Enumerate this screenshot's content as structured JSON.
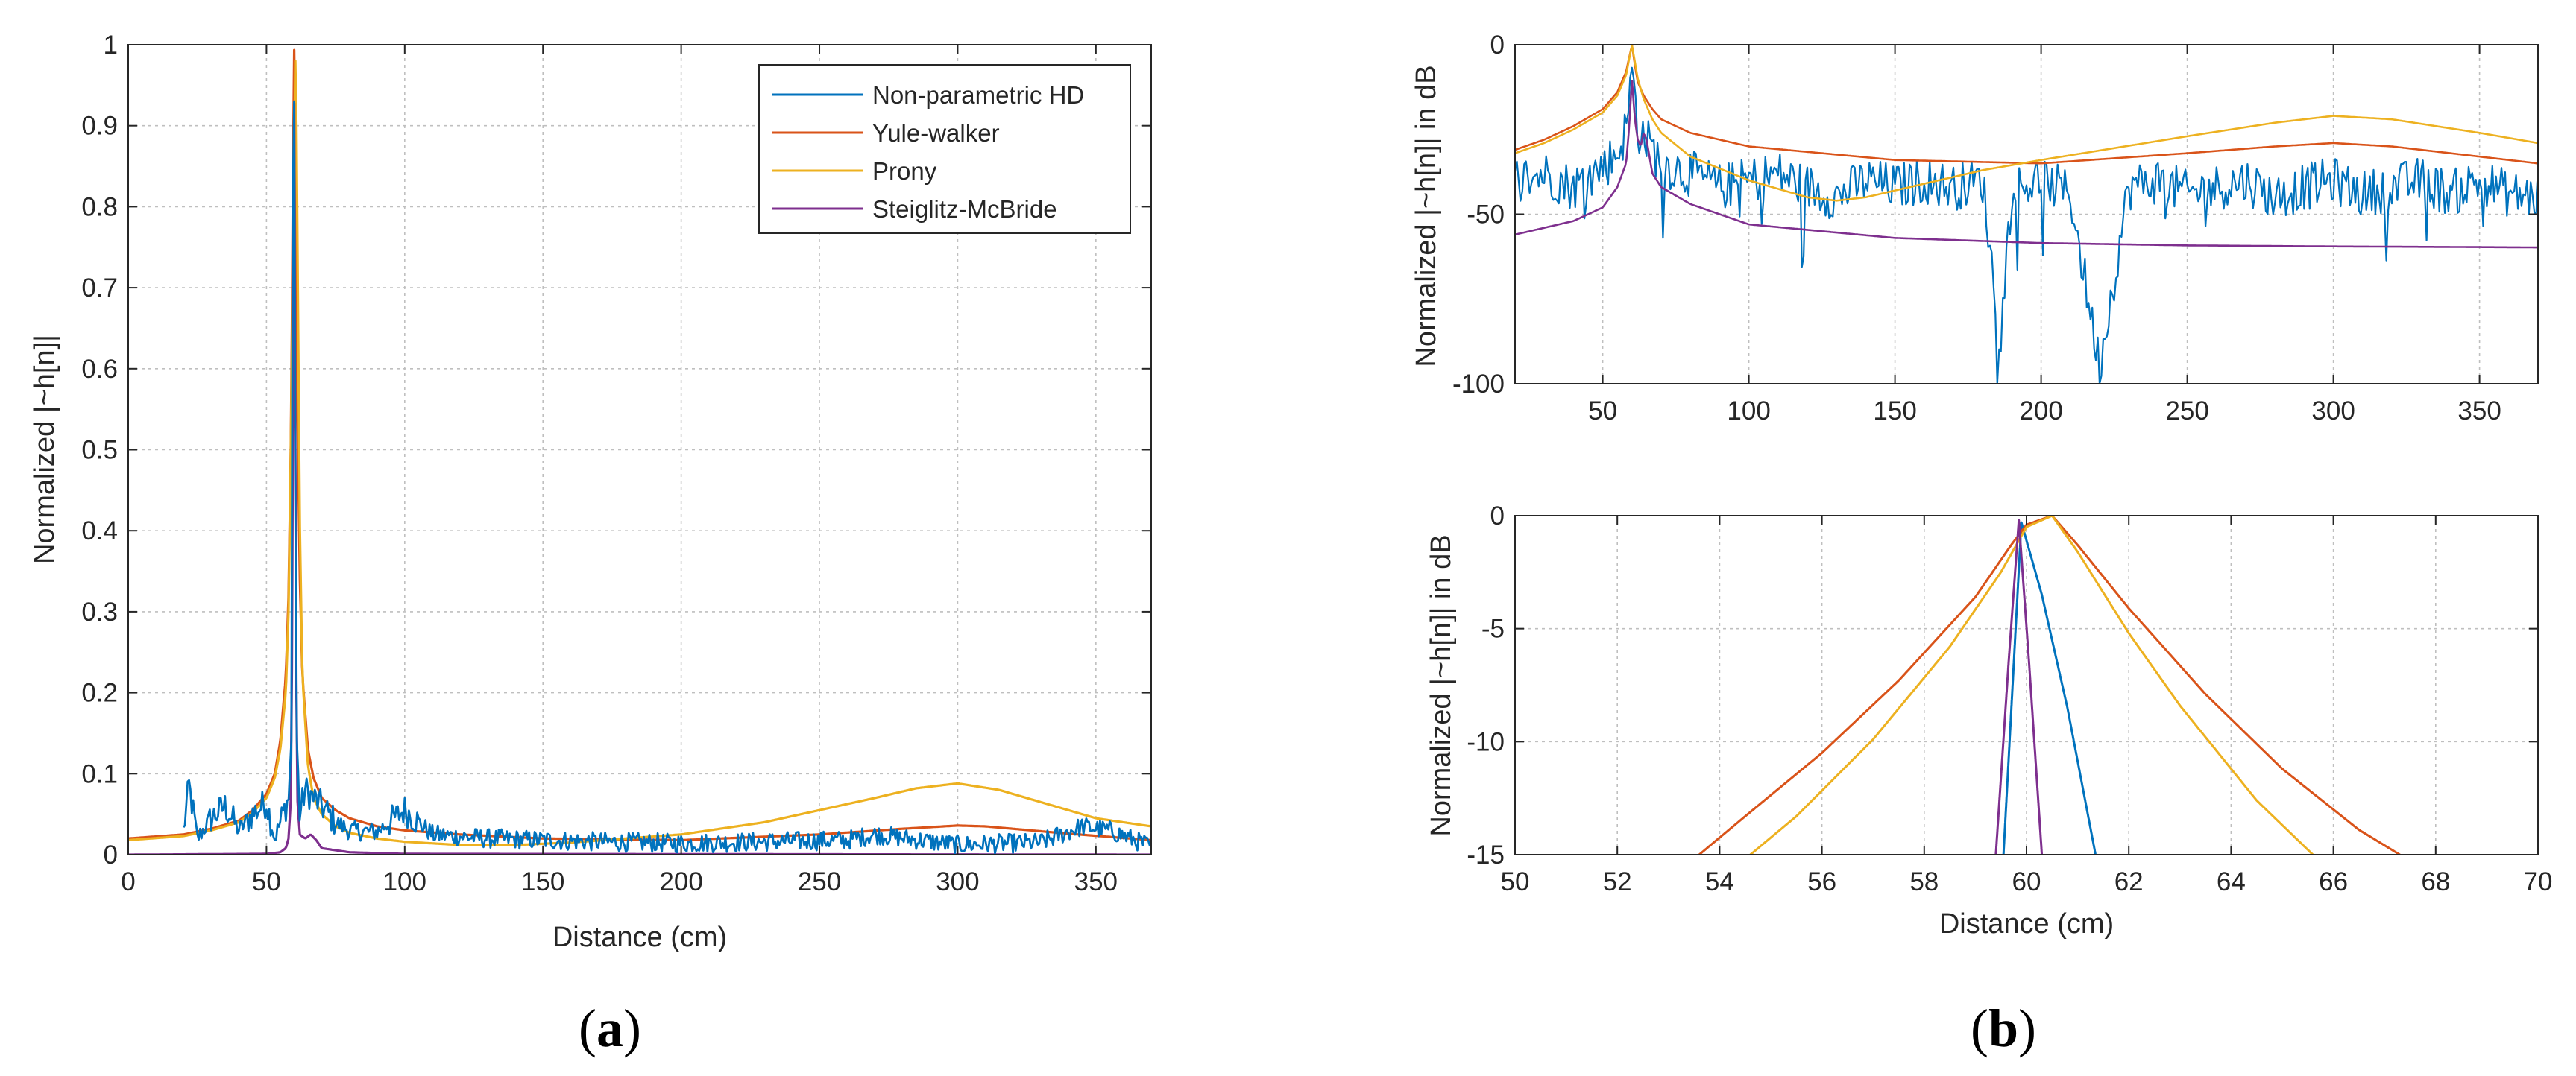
{
  "colors": {
    "non_parametric": "#0072BD",
    "yule_walker": "#D95319",
    "prony": "#EDB120",
    "steiglitz": "#7E2F8E",
    "axes": "#262626",
    "grid": "#bfbfbf"
  },
  "chart_data": [
    {
      "id": "a",
      "type": "line",
      "caption": "a",
      "title": "",
      "xlabel": "Distance (cm)",
      "ylabel": "Normalized |~h[n]|",
      "xlim": [
        0,
        370
      ],
      "ylim": [
        0,
        1
      ],
      "xticks": [
        0,
        50,
        100,
        150,
        200,
        250,
        300,
        350
      ],
      "yticks": [
        0,
        0.1,
        0.2,
        0.3,
        0.4,
        0.5,
        0.6,
        0.7,
        0.8,
        0.9,
        1
      ],
      "grid": true,
      "legend": {
        "position": "top-right",
        "entries": [
          "Non-parametric HD",
          "Yule-walker",
          "Prony",
          "Steiglitz-McBride"
        ]
      },
      "series": [
        {
          "name": "Non-parametric HD",
          "color_key": "non_parametric",
          "kind": "noisy",
          "x": [
            20,
            22,
            25,
            30,
            35,
            40,
            45,
            50,
            53,
            56,
            58,
            59,
            59.5,
            60,
            60.5,
            61,
            62,
            64,
            67,
            70,
            75,
            80,
            90,
            100,
            110,
            130,
            150,
            170,
            200,
            230,
            260,
            270,
            300,
            330,
            345,
            355,
            370
          ],
          "y": [
            0.03,
            0.085,
            0.02,
            0.045,
            0.06,
            0.03,
            0.05,
            0.065,
            0.02,
            0.05,
            0.07,
            0.14,
            0.8,
            0.93,
            0.4,
            0.14,
            0.05,
            0.08,
            0.07,
            0.06,
            0.04,
            0.03,
            0.028,
            0.055,
            0.025,
            0.02,
            0.018,
            0.016,
            0.014,
            0.016,
            0.018,
            0.025,
            0.012,
            0.015,
            0.035,
            0.03,
            0.01
          ],
          "noise": 0.012
        },
        {
          "name": "Yule-walker",
          "color_key": "yule_walker",
          "kind": "smooth",
          "x": [
            0,
            20,
            30,
            40,
            45,
            50,
            53,
            55,
            57,
            58,
            59,
            59.5,
            60,
            60.5,
            61,
            62,
            63,
            65,
            67,
            70,
            75,
            80,
            90,
            100,
            120,
            150,
            200,
            250,
            280,
            300,
            310,
            340,
            370
          ],
          "y": [
            0.02,
            0.025,
            0.032,
            0.042,
            0.055,
            0.075,
            0.1,
            0.14,
            0.22,
            0.32,
            0.55,
            0.8,
            1.0,
            0.85,
            0.6,
            0.35,
            0.22,
            0.13,
            0.095,
            0.07,
            0.055,
            0.045,
            0.035,
            0.03,
            0.025,
            0.02,
            0.018,
            0.025,
            0.032,
            0.036,
            0.035,
            0.026,
            0.018
          ]
        },
        {
          "name": "Prony",
          "color_key": "prony",
          "kind": "smooth",
          "x": [
            0,
            20,
            30,
            40,
            45,
            50,
            53,
            55,
            57,
            58,
            59,
            60,
            60.5,
            61,
            62,
            63,
            65,
            67,
            70,
            75,
            80,
            90,
            100,
            120,
            140,
            160,
            200,
            230,
            250,
            270,
            285,
            300,
            315,
            330,
            350,
            370
          ],
          "y": [
            0.018,
            0.023,
            0.03,
            0.04,
            0.052,
            0.07,
            0.095,
            0.13,
            0.2,
            0.3,
            0.55,
            0.85,
            1.0,
            0.85,
            0.42,
            0.22,
            0.11,
            0.07,
            0.05,
            0.035,
            0.027,
            0.02,
            0.016,
            0.012,
            0.012,
            0.015,
            0.025,
            0.04,
            0.055,
            0.07,
            0.082,
            0.088,
            0.08,
            0.065,
            0.045,
            0.035
          ]
        },
        {
          "name": "Steiglitz-McBride",
          "color_key": "steiglitz",
          "kind": "smooth",
          "x": [
            0,
            50,
            55,
            57,
            58,
            59,
            59.5,
            60,
            60.5,
            61,
            62,
            64,
            66,
            68,
            70,
            80,
            100,
            370
          ],
          "y": [
            0,
            0.001,
            0.003,
            0.008,
            0.02,
            0.08,
            0.45,
            0.95,
            0.45,
            0.08,
            0.025,
            0.02,
            0.025,
            0.018,
            0.008,
            0.003,
            0.001,
            0
          ]
        }
      ]
    },
    {
      "id": "b_top",
      "type": "line",
      "title": "",
      "xlabel": "",
      "ylabel": "Normalized |~h[n]| in dB",
      "xlim": [
        20,
        370
      ],
      "ylim": [
        -100,
        0
      ],
      "xticks": [
        50,
        100,
        150,
        200,
        250,
        300,
        350
      ],
      "yticks": [
        -100,
        -50,
        0
      ],
      "grid": true,
      "series": [
        {
          "name": "Non-parametric HD",
          "color_key": "non_parametric",
          "kind": "noisy",
          "x": [
            20,
            30,
            40,
            50,
            55,
            58,
            60,
            61,
            62,
            65,
            70,
            80,
            90,
            100,
            110,
            120,
            130,
            140,
            150,
            160,
            170,
            180,
            186,
            190,
            200,
            210,
            220,
            230,
            240,
            250,
            260,
            270,
            280,
            290,
            300,
            310,
            320,
            330,
            340,
            350,
            360,
            370
          ],
          "y": [
            -40,
            -38,
            -42,
            -36,
            -32,
            -25,
            -8,
            -15,
            -25,
            -28,
            -35,
            -38,
            -42,
            -40,
            -38,
            -42,
            -45,
            -40,
            -42,
            -40,
            -42,
            -40,
            -88,
            -42,
            -40,
            -44,
            -95,
            -42,
            -40,
            -44,
            -42,
            -40,
            -45,
            -42,
            -40,
            -44,
            -42,
            -40,
            -44,
            -40,
            -44,
            -45
          ],
          "noise": 7
        },
        {
          "name": "Yule-walker",
          "color_key": "yule_walker",
          "kind": "smooth",
          "x": [
            20,
            30,
            40,
            50,
            55,
            58,
            60,
            61,
            62,
            64,
            67,
            70,
            80,
            100,
            150,
            200,
            250,
            280,
            300,
            320,
            350,
            370
          ],
          "y": [
            -31,
            -28,
            -24,
            -19,
            -14,
            -8,
            0,
            -6,
            -11,
            -15,
            -19,
            -22,
            -26,
            -30,
            -34,
            -35,
            -32,
            -30,
            -29,
            -30,
            -33,
            -35
          ]
        },
        {
          "name": "Prony",
          "color_key": "prony",
          "kind": "smooth",
          "x": [
            20,
            30,
            40,
            50,
            55,
            58,
            60,
            61,
            62,
            64,
            67,
            70,
            80,
            100,
            120,
            130,
            140,
            160,
            180,
            200,
            250,
            280,
            300,
            320,
            350,
            370
          ],
          "y": [
            -32,
            -29,
            -25,
            -20,
            -15,
            -9,
            0,
            -5,
            -10,
            -16,
            -22,
            -26,
            -33,
            -40,
            -45,
            -46,
            -45,
            -41,
            -37,
            -34,
            -27,
            -23,
            -21,
            -22,
            -26,
            -29
          ]
        },
        {
          "name": "Steiglitz-McBride",
          "color_key": "steiglitz",
          "kind": "smooth",
          "x": [
            20,
            30,
            40,
            50,
            55,
            58,
            59,
            60,
            61,
            62,
            63,
            64,
            65,
            67,
            70,
            80,
            100,
            150,
            200,
            250,
            300,
            350,
            370
          ],
          "y": [
            -56,
            -54,
            -52,
            -48,
            -42,
            -35,
            -25,
            -10,
            -22,
            -28,
            -30,
            -26,
            -28,
            -38,
            -42,
            -47,
            -53,
            -57,
            -58.5,
            -59.2,
            -59.5,
            -59.7,
            -59.8
          ]
        }
      ]
    },
    {
      "id": "b_bottom",
      "type": "line",
      "caption": "b",
      "title": "",
      "xlabel": "Distance (cm)",
      "ylabel": "Normalized |~h[n]| in dB",
      "xlim": [
        50,
        70
      ],
      "ylim": [
        -15,
        0
      ],
      "xticks": [
        50,
        52,
        54,
        56,
        58,
        60,
        62,
        64,
        66,
        68,
        70
      ],
      "yticks": [
        -15,
        -10,
        -5,
        0
      ],
      "grid": true,
      "series": [
        {
          "name": "Non-parametric HD",
          "color_key": "non_parametric",
          "kind": "smooth",
          "x": [
            59.55,
            59.9,
            60.3,
            60.8,
            61.35
          ],
          "y": [
            -15,
            -0.3,
            -3.5,
            -8.5,
            -15
          ]
        },
        {
          "name": "Yule-walker",
          "color_key": "yule_walker",
          "kind": "smooth",
          "x": [
            53.6,
            54.5,
            56,
            57.5,
            59,
            59.7,
            60,
            60.5,
            61,
            62,
            63.5,
            65,
            66.5,
            67.3
          ],
          "y": [
            -15,
            -13.3,
            -10.5,
            -7.3,
            -3.6,
            -1.3,
            -0.4,
            0,
            -1.3,
            -4.1,
            -7.9,
            -11.2,
            -13.9,
            -15
          ]
        },
        {
          "name": "Prony",
          "color_key": "prony",
          "kind": "smooth",
          "x": [
            54.6,
            55.5,
            57,
            58.5,
            59.5,
            60,
            60.5,
            61,
            62,
            63,
            64.5,
            65.6
          ],
          "y": [
            -15,
            -13.3,
            -9.9,
            -5.8,
            -2.5,
            -0.5,
            0,
            -1.6,
            -5.2,
            -8.4,
            -12.6,
            -15
          ]
        },
        {
          "name": "Steiglitz-McBride",
          "color_key": "steiglitz",
          "kind": "smooth",
          "x": [
            59.4,
            59.65,
            59.85,
            60.05,
            60.3
          ],
          "y": [
            -15,
            -6.5,
            -0.2,
            -6.5,
            -15
          ]
        }
      ]
    }
  ]
}
